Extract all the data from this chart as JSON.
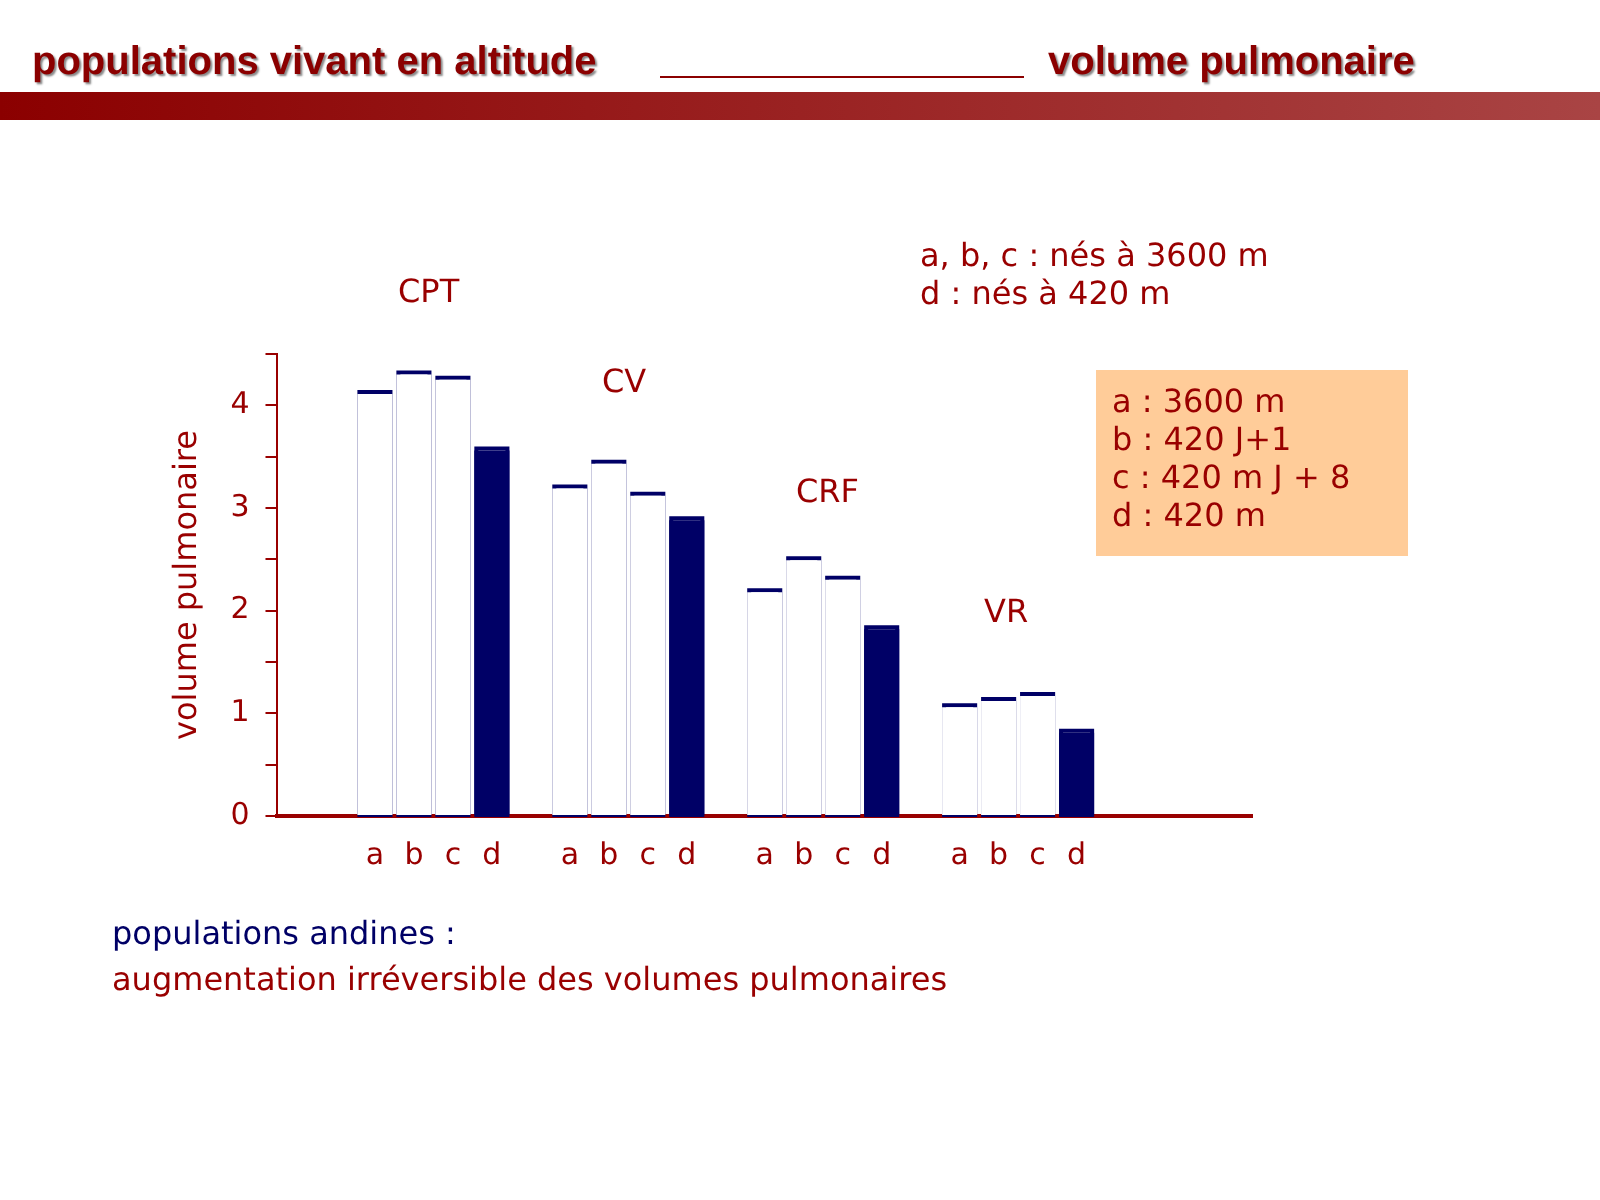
{
  "chart_data": {
    "type": "bar",
    "title": "populations vivant en altitude",
    "subtitle": "volume pulmonaire",
    "ylabel": "volume pulmonaire",
    "categories": [
      null,
      null,
      "a",
      "b",
      "c",
      "d",
      null,
      "a",
      "b",
      "c",
      "d",
      null,
      "a",
      "b",
      "c",
      "d",
      null,
      "a",
      "b",
      "c",
      "d",
      null,
      null,
      null,
      null
    ],
    "values": [
      null,
      null,
      4.11,
      4.3,
      4.25,
      3.56,
      null,
      3.19,
      3.43,
      3.12,
      2.88,
      null,
      2.18,
      2.49,
      2.3,
      1.82,
      null,
      1.06,
      1.12,
      1.17,
      0.81,
      null,
      null,
      null,
      null
    ],
    "colors": [
      null,
      null,
      "#ffffff",
      "#ffffff",
      "#ffffff",
      "#000066",
      null,
      "#ffffff",
      "#ffffff",
      "#ffffff",
      "#000066",
      null,
      "#ffffff",
      "#ffffff",
      "#ffffff",
      "#000066",
      null,
      "#ffffff",
      "#ffffff",
      "#ffffff",
      "#000066",
      null,
      null,
      null,
      null
    ],
    "ylim": [
      0,
      4.5
    ],
    "yticks": [
      0,
      {
        "value": 0.5,
        "label": null
      },
      1,
      {
        "value": 1.5,
        "label": null
      },
      2,
      {
        "value": 2.5,
        "label": null
      },
      3,
      {
        "value": 3.5,
        "label": null
      },
      4,
      {
        "value": 4.5,
        "label": null
      }
    ],
    "grid": false,
    "legend": false,
    "annotations": [
      "CPT",
      "CV",
      "CRF",
      "VR",
      "a, b, c : nés à 3600 m",
      "d : nés à 420 m",
      "a : 3600 m",
      "b : 420 J+1",
      "c : 420 m J + 8",
      "d : 420 m",
      "populations andines :",
      "augmentation irréversible des volumes pulmonaires"
    ]
  }
}
